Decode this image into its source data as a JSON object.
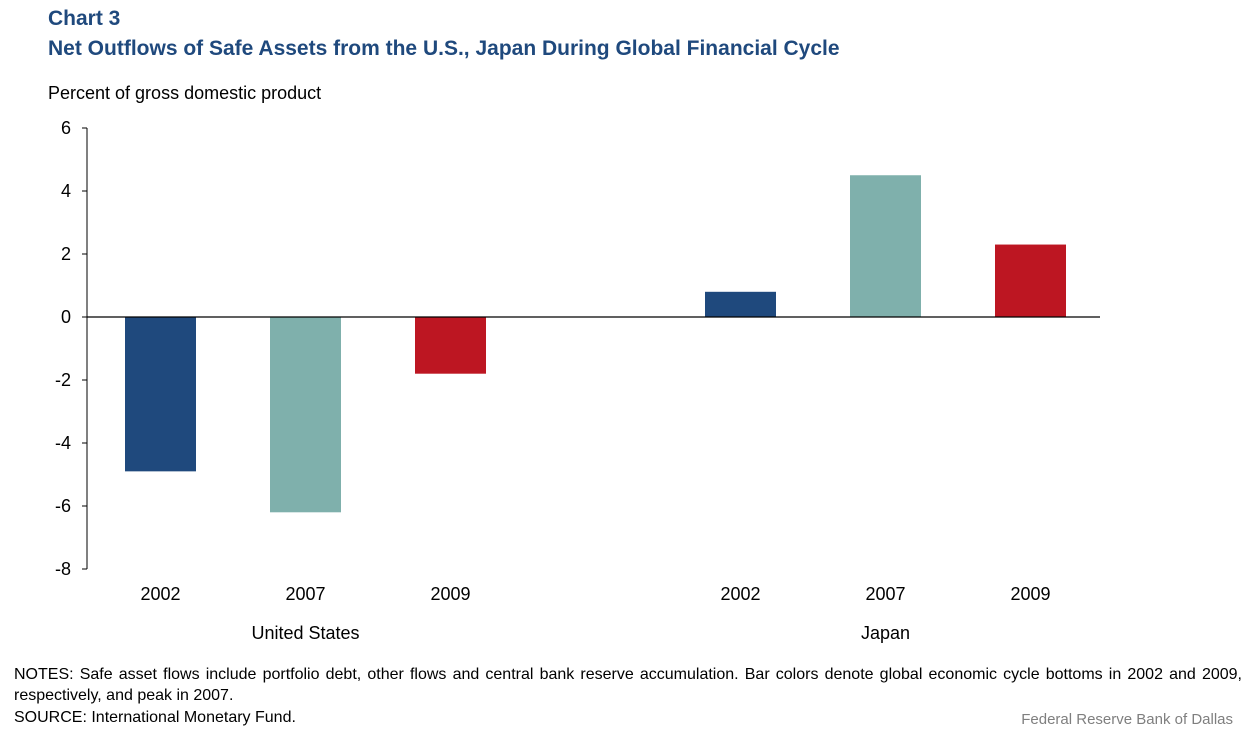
{
  "header": {
    "chart_label": "Chart 3",
    "title": "Net Outflows of Safe Assets from the U.S., Japan During Global Financial Cycle"
  },
  "footer": {
    "notes": "NOTES: Safe asset flows include portfolio debt, other flows and central bank reserve accumulation. Bar colors denote global economic cycle bottoms in 2002 and 2009, respectively, and peak in 2007.",
    "source": "SOURCE: International Monetary Fund.",
    "credit": "Federal Reserve Bank of Dallas"
  },
  "colors": {
    "2002": "#1f497d",
    "2007": "#7fb0ac",
    "2009": "#bd1622",
    "title": "#1f497d"
  },
  "chart_data": {
    "type": "bar",
    "title": "Net Outflows of Safe Assets from the U.S., Japan During Global Financial Cycle",
    "ylabel": "Percent of gross domestic product",
    "xlabel": "",
    "ylim": [
      -8,
      6
    ],
    "yticks": [
      -8,
      -6,
      -4,
      -2,
      0,
      2,
      4,
      6
    ],
    "grid": false,
    "legend": "none",
    "groups": [
      {
        "name": "United States",
        "categories": [
          "2002",
          "2007",
          "2009"
        ],
        "values": [
          -4.9,
          -6.2,
          -1.8
        ]
      },
      {
        "name": "Japan",
        "categories": [
          "2002",
          "2007",
          "2009"
        ],
        "values": [
          0.8,
          4.5,
          2.3
        ]
      }
    ]
  }
}
